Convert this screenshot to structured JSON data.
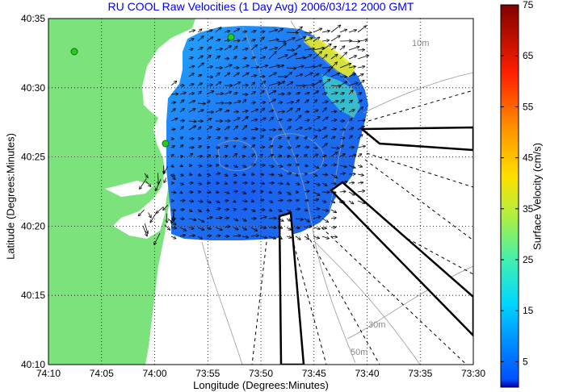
{
  "chart_data": {
    "type": "heatmap",
    "title": "RU COOL Raw Velocities (1 Day Avg) 2006/03/12 2000 GMT",
    "xlabel": "Longitude (Degrees:Minutes)",
    "ylabel": "Latitude (Degrees:Minutes)",
    "x_ticks": [
      "74:10",
      "74:05",
      "74:00",
      "73:55",
      "73:50",
      "73:45",
      "73:40",
      "73:35",
      "73:30"
    ],
    "y_ticks": [
      "40:35",
      "40:30",
      "40:25",
      "40:20",
      "40:15",
      "40:10"
    ],
    "xlim": [
      "74:10",
      "73:30"
    ],
    "ylim": [
      "40:10",
      "40:35"
    ],
    "grid": true,
    "colorbar": {
      "label": "Surface Velocity (cm/s)",
      "ticks": [
        75,
        65,
        55,
        45,
        35,
        25,
        15,
        5
      ],
      "range": [
        0,
        75
      ],
      "colormap": "jet"
    },
    "contour_labels": [
      "10m",
      "30m",
      "50m"
    ],
    "colors": {
      "land": "#7ce37c",
      "low_velocity": "#1e78f0",
      "mid_velocity": "#19c8ff",
      "high_velocity": "#f0e61e"
    }
  }
}
